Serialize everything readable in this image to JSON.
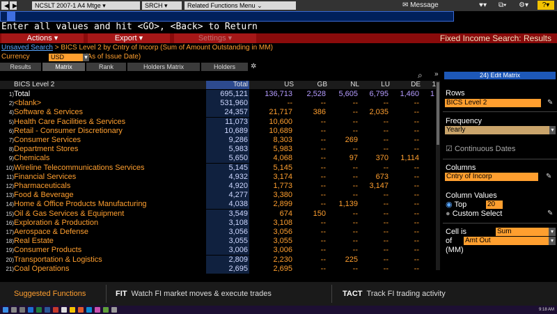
{
  "titlebar": {
    "security": "NCSLT 2007-1 A4 Mtge",
    "srch": "SRCH",
    "related": "Related Functions Menu",
    "message": "Message",
    "dropdown_arrow": "▾",
    "icons": [
      "envelope-icon",
      "heart-icon",
      "window-icon",
      "gear-icon",
      "help-icon"
    ]
  },
  "instruction": "Enter all values and hit <GO>, <Back> to Return",
  "menubar": {
    "actions": "Actions ▾",
    "export": "Export ▾",
    "settings": "Settings ▾",
    "title": "Fixed Income Search: Results"
  },
  "breadcrumb": {
    "link": "Unsaved Search",
    "text": " > BICS Level 2 by Cntry of Incorp (Sum of Amount Outstanding in MM)"
  },
  "currency": {
    "label": "Currency",
    "value": "USD",
    "note": "(As of Issue Date)"
  },
  "tabs": [
    {
      "label": "Results"
    },
    {
      "label": "Matrix"
    },
    {
      "label": "Rank"
    },
    {
      "label": "Holders Matrix"
    },
    {
      "label": "Holders"
    }
  ],
  "table": {
    "headers": [
      "BICS Level 2",
      "Total",
      "US",
      "GB",
      "NL",
      "LU",
      "DE",
      "1"
    ],
    "rows": [
      {
        "n": "1)",
        "name": "Total",
        "total": "695,121",
        "us": "136,713",
        "gb": "2,528",
        "nl": "5,605",
        "lu": "6,795",
        "de": "1,460",
        "x": "1"
      },
      {
        "n": "2)",
        "name": "<blank>",
        "total": "531,960",
        "us": "--",
        "gb": "--",
        "nl": "--",
        "lu": "--",
        "de": "--",
        "x": ""
      },
      {
        "n": "4)",
        "name": "Software & Services",
        "total": "24,357",
        "us": "21,717",
        "gb": "386",
        "nl": "--",
        "lu": "2,035",
        "de": "--",
        "x": ""
      },
      {
        "n": "5)",
        "name": "Health Care Facilities & Services",
        "total": "11,073",
        "us": "10,600",
        "gb": "--",
        "nl": "--",
        "lu": "--",
        "de": "--",
        "x": ""
      },
      {
        "n": "6)",
        "name": "Retail - Consumer Discretionary",
        "total": "10,689",
        "us": "10,689",
        "gb": "--",
        "nl": "--",
        "lu": "--",
        "de": "--",
        "x": ""
      },
      {
        "n": "7)",
        "name": "Consumer Services",
        "total": "9,286",
        "us": "8,303",
        "gb": "--",
        "nl": "269",
        "lu": "--",
        "de": "--",
        "x": ""
      },
      {
        "n": "8)",
        "name": "Department Stores",
        "total": "5,983",
        "us": "5,983",
        "gb": "--",
        "nl": "--",
        "lu": "--",
        "de": "--",
        "x": ""
      },
      {
        "n": "9)",
        "name": "Chemicals",
        "total": "5,650",
        "us": "4,068",
        "gb": "--",
        "nl": "97",
        "lu": "370",
        "de": "1,114",
        "x": ""
      },
      {
        "n": "10)",
        "name": "Wireline Telecommunications Services",
        "total": "5,145",
        "us": "5,145",
        "gb": "--",
        "nl": "--",
        "lu": "--",
        "de": "--",
        "x": ""
      },
      {
        "n": "11)",
        "name": "Financial Services",
        "total": "4,932",
        "us": "3,174",
        "gb": "--",
        "nl": "--",
        "lu": "673",
        "de": "--",
        "x": ""
      },
      {
        "n": "12)",
        "name": "Pharmaceuticals",
        "total": "4,920",
        "us": "1,773",
        "gb": "--",
        "nl": "--",
        "lu": "3,147",
        "de": "--",
        "x": ""
      },
      {
        "n": "13)",
        "name": "Food & Beverage",
        "total": "4,277",
        "us": "3,380",
        "gb": "--",
        "nl": "--",
        "lu": "--",
        "de": "--",
        "x": ""
      },
      {
        "n": "14)",
        "name": "Home & Office Products Manufacturing",
        "total": "4,038",
        "us": "2,899",
        "gb": "--",
        "nl": "1,139",
        "lu": "--",
        "de": "--",
        "x": ""
      },
      {
        "n": "15)",
        "name": "Oil & Gas Services & Equipment",
        "total": "3,549",
        "us": "674",
        "gb": "150",
        "nl": "--",
        "lu": "--",
        "de": "--",
        "x": ""
      },
      {
        "n": "16)",
        "name": "Exploration & Production",
        "total": "3,108",
        "us": "3,108",
        "gb": "--",
        "nl": "--",
        "lu": "--",
        "de": "--",
        "x": ""
      },
      {
        "n": "17)",
        "name": "Aerospace & Defense",
        "total": "3,056",
        "us": "3,056",
        "gb": "--",
        "nl": "--",
        "lu": "--",
        "de": "--",
        "x": ""
      },
      {
        "n": "18)",
        "name": "Real Estate",
        "total": "3,055",
        "us": "3,055",
        "gb": "--",
        "nl": "--",
        "lu": "--",
        "de": "--",
        "x": ""
      },
      {
        "n": "19)",
        "name": "Consumer Products",
        "total": "3,006",
        "us": "3,006",
        "gb": "--",
        "nl": "--",
        "lu": "--",
        "de": "--",
        "x": ""
      },
      {
        "n": "20)",
        "name": "Transportation & Logistics",
        "total": "2,809",
        "us": "2,230",
        "gb": "--",
        "nl": "225",
        "lu": "--",
        "de": "--",
        "x": ""
      },
      {
        "n": "21)",
        "name": "Coal Operations",
        "total": "2,695",
        "us": "2,695",
        "gb": "--",
        "nl": "--",
        "lu": "--",
        "de": "--",
        "x": ""
      }
    ]
  },
  "panel": {
    "header": "24) Edit Matrix",
    "rows_label": "Rows",
    "rows_value": "BICS Level 2",
    "freq_label": "Frequency",
    "freq_value": "Yearly",
    "continuous": "Continuous Dates",
    "columns_label": "Columns",
    "columns_value": "Cntry of Incorp",
    "colvalues_label": "Column Values",
    "top_label": "Top",
    "top_value": "20",
    "custom_label": "Custom Select",
    "cell_is": "Cell is",
    "cell_value": "Sum",
    "of_label": "of",
    "of_value": "Amt Out",
    "mm": "(MM)"
  },
  "suggestions": {
    "title": "Suggested Functions",
    "items": [
      {
        "code": "FIT",
        "desc": "Watch FI market moves & execute trades"
      },
      {
        "code": "TACT",
        "desc": "Track FI trading activity"
      }
    ]
  },
  "taskbar": {
    "clock": "9:18 AM"
  },
  "colors": {
    "accent": "#ff9f2f",
    "menubar": "#8a0b0b",
    "highlight": "#1d58b8"
  }
}
